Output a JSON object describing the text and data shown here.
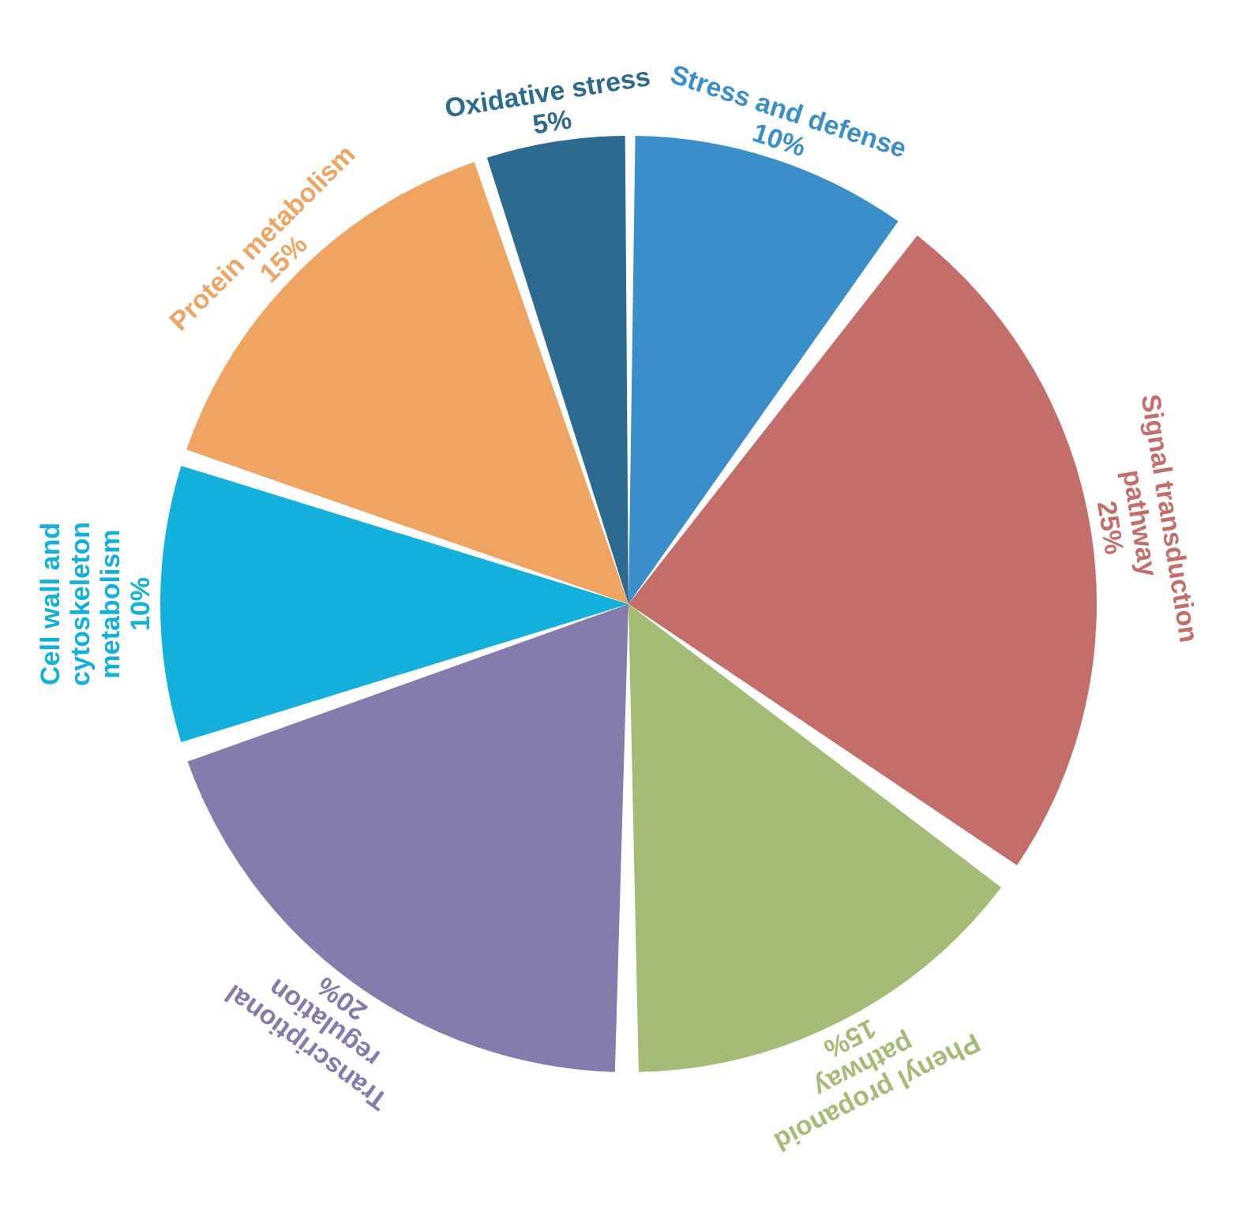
{
  "chart_data": {
    "type": "pie",
    "categories": [
      "Stress and defense",
      "Signal transduction pathway",
      "Phenyl propanoid pathway",
      "Transcriptional regulation",
      "Cell wall and cytoskeleton metabolism",
      "Protein metabolism",
      "Oxidative stress"
    ],
    "values": [
      10,
      25,
      15,
      20,
      10,
      15,
      5
    ],
    "colors": [
      "#3a8fcb",
      "#c36e69",
      "#a4bc76",
      "#857bad",
      "#12b0da",
      "#efa462",
      "#2c6a8f"
    ],
    "value_labels": [
      "10%",
      "25%",
      "15%",
      "20%",
      "10%",
      "15%",
      "5%"
    ],
    "legend": false
  }
}
